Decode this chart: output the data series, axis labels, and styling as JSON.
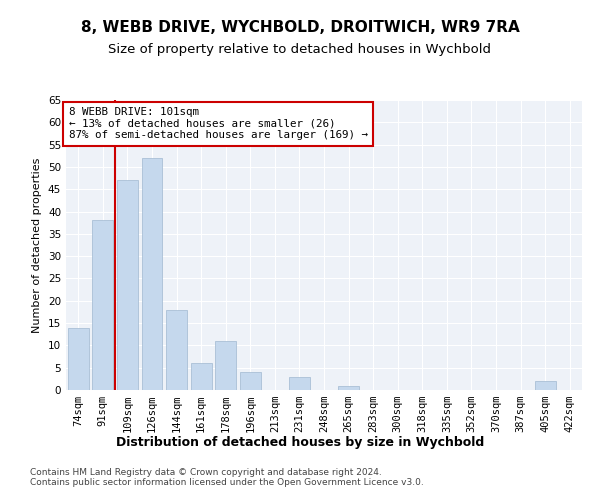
{
  "title1": "8, WEBB DRIVE, WYCHBOLD, DROITWICH, WR9 7RA",
  "title2": "Size of property relative to detached houses in Wychbold",
  "xlabel": "Distribution of detached houses by size in Wychbold",
  "ylabel": "Number of detached properties",
  "categories": [
    "74sqm",
    "91sqm",
    "109sqm",
    "126sqm",
    "144sqm",
    "161sqm",
    "178sqm",
    "196sqm",
    "213sqm",
    "231sqm",
    "248sqm",
    "265sqm",
    "283sqm",
    "300sqm",
    "318sqm",
    "335sqm",
    "352sqm",
    "370sqm",
    "387sqm",
    "405sqm",
    "422sqm"
  ],
  "values": [
    14,
    38,
    47,
    52,
    18,
    6,
    11,
    4,
    0,
    3,
    0,
    1,
    0,
    0,
    0,
    0,
    0,
    0,
    0,
    2,
    0
  ],
  "bar_color": "#c5d8ed",
  "bar_edge_color": "#a0b8d0",
  "vline_x": 1.5,
  "vline_color": "#cc0000",
  "annotation_text": "8 WEBB DRIVE: 101sqm\n← 13% of detached houses are smaller (26)\n87% of semi-detached houses are larger (169) →",
  "annotation_box_color": "#ffffff",
  "annotation_box_edge": "#cc0000",
  "ylim": [
    0,
    65
  ],
  "yticks": [
    0,
    5,
    10,
    15,
    20,
    25,
    30,
    35,
    40,
    45,
    50,
    55,
    60,
    65
  ],
  "background_color": "#eef2f8",
  "grid_color": "#ffffff",
  "footer": "Contains HM Land Registry data © Crown copyright and database right 2024.\nContains public sector information licensed under the Open Government Licence v3.0.",
  "title1_fontsize": 11,
  "title2_fontsize": 9.5,
  "xlabel_fontsize": 9,
  "ylabel_fontsize": 8,
  "tick_fontsize": 7.5,
  "annotation_fontsize": 7.8,
  "footer_fontsize": 6.5
}
